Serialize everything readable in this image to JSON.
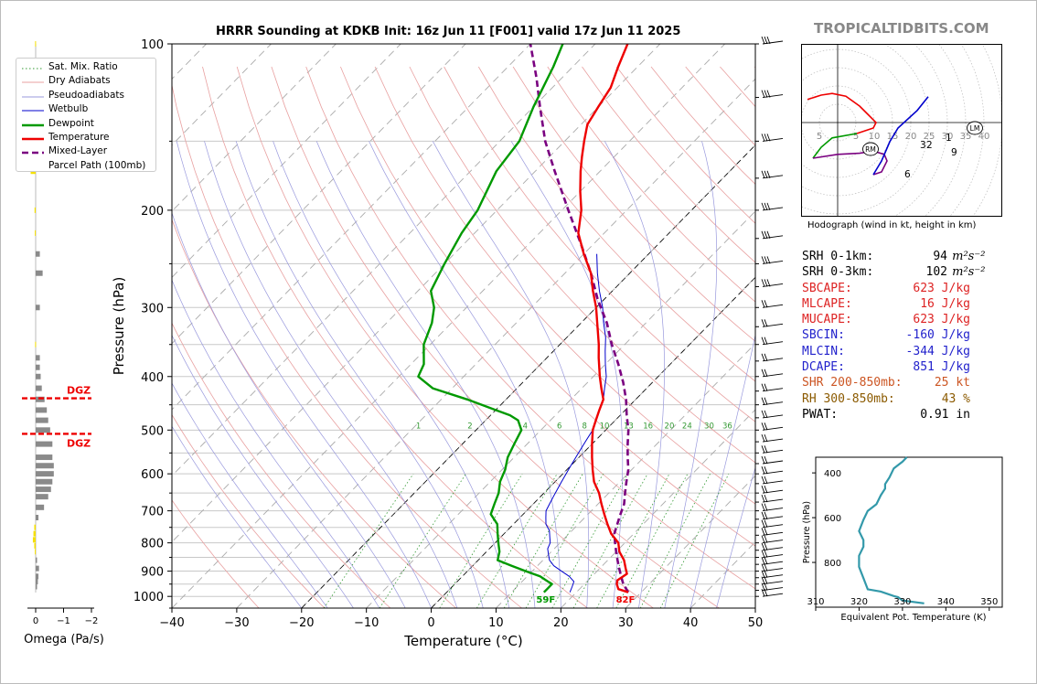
{
  "watermark": "TROPICALTIDBITS.COM",
  "title": "HRRR Sounding at KDKB Init: 16z Jun 11 [F001] valid 17z Jun 11 2025",
  "chart_data": [
    {
      "type": "line",
      "name": "skew-t",
      "xlabel": "Temperature (°C)",
      "ylabel": "Pressure (hPa)",
      "xlim": [
        -40,
        50
      ],
      "ylim": [
        1050,
        100
      ],
      "y_scale": "log",
      "x_ticks": [
        "−40",
        "−30",
        "−20",
        "−10",
        "0",
        "10",
        "20",
        "30",
        "40",
        "50"
      ],
      "y_ticks": [
        "100",
        "200",
        "300",
        "400",
        "500",
        "600",
        "700",
        "800",
        "900",
        "1000"
      ],
      "legend_position": "top-left",
      "legend": [
        "Sat. Mix. Ratio",
        "Dry Adiabats",
        "Pseudoadiabats",
        "Wetbulb",
        "Dewpoint",
        "Temperature",
        "Mixed-Layer",
        "Parcel Path (100mb)"
      ],
      "mixing_ratio_labels": [
        "1",
        "2",
        "4",
        "6",
        "8",
        "10",
        "13",
        "16",
        "20",
        "24",
        "30",
        "36"
      ],
      "surface_labels": {
        "dewpoint": "59F",
        "temperature": "82F"
      },
      "colors": {
        "temperature": "#ee0000",
        "dewpoint": "#009900",
        "wetbulb": "#0000cc",
        "parcel": "#7a0080"
      },
      "temperature": {
        "p": [
          983,
          970,
          950,
          935,
          910,
          890,
          860,
          830,
          800,
          770,
          740,
          710,
          680,
          650,
          620,
          590,
          560,
          530,
          500,
          480,
          460,
          440,
          420,
          400,
          370,
          350,
          320,
          300,
          280,
          260,
          240,
          220,
          200,
          185,
          170,
          160,
          150,
          140,
          130,
          120,
          110,
          100
        ],
        "t": [
          28,
          26,
          25,
          24.5,
          25,
          24,
          22.5,
          20.5,
          19,
          16.5,
          14.5,
          12.5,
          10.5,
          8.5,
          6,
          4,
          2,
          0,
          -2,
          -3,
          -4,
          -5,
          -7,
          -9,
          -12,
          -14,
          -17.5,
          -20,
          -23,
          -26,
          -30,
          -34,
          -37,
          -40,
          -43,
          -45,
          -47,
          -49,
          -50,
          -51,
          -53,
          -55
        ]
      },
      "dewpoint": {
        "p": [
          983,
          970,
          950,
          940,
          920,
          900,
          880,
          860,
          830,
          800,
          770,
          740,
          710,
          680,
          650,
          620,
          590,
          560,
          530,
          500,
          480,
          470,
          460,
          440,
          420,
          400,
          380,
          350,
          320,
          300,
          280,
          250,
          220,
          200,
          170,
          150,
          130,
          110,
          100
        ],
        "t": [
          15,
          15,
          15,
          14,
          12,
          9,
          6,
          3,
          2,
          0.5,
          -1,
          -2.5,
          -5,
          -6,
          -7,
          -8.5,
          -9.5,
          -11,
          -12,
          -13,
          -15,
          -17,
          -20,
          -26,
          -33,
          -37,
          -38,
          -41,
          -43,
          -45,
          -48,
          -50,
          -52,
          -53,
          -56,
          -57,
          -60,
          -63,
          -65
        ]
      },
      "wetbulb": {
        "p": [
          983,
          960,
          940,
          920,
          900,
          880,
          860,
          840,
          820,
          800,
          780,
          760,
          740,
          720,
          700,
          680,
          660,
          640,
          620,
          600,
          580,
          560,
          540,
          520,
          500,
          480,
          460,
          440,
          420,
          400,
          380,
          360,
          340,
          320,
          300,
          280,
          260,
          240
        ],
        "t": [
          19,
          18.5,
          18,
          16.5,
          14.5,
          12.5,
          11,
          10,
          9,
          8.5,
          7.5,
          6.5,
          5,
          4,
          3,
          2.5,
          2,
          1.5,
          1,
          0.5,
          0,
          -0.5,
          -1,
          -1.5,
          -2,
          -3,
          -4,
          -5,
          -6.5,
          -8,
          -10,
          -12,
          -14,
          -16.5,
          -19,
          -22,
          -25,
          -28
        ]
      },
      "parcel": {
        "p": [
          983,
          950,
          920,
          890,
          860,
          830,
          800,
          770,
          740,
          710,
          680,
          650,
          620,
          590,
          560,
          530,
          500,
          470,
          440,
          410,
          380,
          350,
          320,
          290,
          260,
          230,
          200,
          170,
          150,
          130,
          115,
          100
        ],
        "t": [
          28,
          26,
          24.5,
          23,
          21.5,
          20,
          18.5,
          17,
          16,
          15,
          14,
          12.5,
          11,
          9.5,
          7.5,
          5.5,
          3.5,
          1,
          -1.5,
          -4.5,
          -8,
          -12,
          -16,
          -21,
          -26,
          -32,
          -39,
          -47,
          -53,
          -59,
          -64,
          -70
        ]
      }
    },
    {
      "type": "line",
      "name": "hodograph",
      "title": "Hodograph (wind in kt, height in km)",
      "ring_labels": [
        "5",
        "5",
        "10",
        "15",
        "20",
        "25",
        "30",
        "35",
        "40"
      ],
      "height_labels": [
        "1",
        "2",
        "3",
        "6",
        "9"
      ],
      "markers": [
        "RM",
        "LM"
      ],
      "segments": [
        {
          "color": "#ee0000",
          "u": [
            -5.5,
            -3,
            -1,
            1.5,
            4,
            5.5,
            7,
            6.5,
            3.5
          ],
          "v": [
            4.2,
            5,
            5.3,
            4.8,
            3,
            1.5,
            0,
            -1,
            -2
          ]
        },
        {
          "color": "#009900",
          "u": [
            3.5,
            -1,
            -3,
            -4.5
          ],
          "v": [
            -2,
            -2.8,
            -4.5,
            -6.5
          ]
        },
        {
          "color": "#7a0080",
          "u": [
            -4.5,
            0,
            4,
            6.5,
            8.5,
            9,
            8,
            6.5
          ],
          "v": [
            -6.5,
            -5.8,
            -5.6,
            -5.2,
            -5.8,
            -7,
            -9,
            -9.5
          ]
        },
        {
          "color": "#0000cc",
          "u": [
            6.5,
            8,
            9.5,
            11,
            14.5,
            16.5
          ],
          "v": [
            -9.5,
            -7,
            -3.5,
            -1,
            2.2,
            4.7
          ]
        }
      ]
    },
    {
      "type": "line",
      "name": "theta-e",
      "xlabel": "Equivalent Pot. Temperature (K)",
      "ylabel": "Pressure (hPa)",
      "xlim": [
        310,
        353
      ],
      "ylim": [
        1000,
        330
      ],
      "x_ticks": [
        "310",
        "320",
        "330",
        "340",
        "350"
      ],
      "y_ticks": [
        "400",
        "600",
        "800"
      ],
      "color": "#3399aa",
      "theta_e": [
        335,
        330,
        329,
        328,
        325,
        322,
        321,
        320,
        320,
        321,
        321,
        320,
        321,
        322,
        324,
        325,
        326,
        326,
        327,
        328,
        330,
        331
      ],
      "p": [
        983,
        970,
        955,
        950,
        930,
        920,
        870,
        820,
        770,
        730,
        700,
        660,
        610,
        570,
        540,
        500,
        470,
        450,
        420,
        380,
        350,
        330
      ]
    },
    {
      "type": "bar",
      "name": "omega",
      "xlabel": "Omega (Pa/s)",
      "x_ticks": [
        "0",
        "−1",
        "−2"
      ],
      "xlim": [
        0.4,
        -2.4
      ],
      "dgz_label": "DGZ",
      "dgz_bounds_hpa": [
        438,
        508
      ],
      "p": [
        100,
        130,
        150,
        170,
        200,
        220,
        240,
        260,
        300,
        350,
        370,
        385,
        400,
        420,
        440,
        460,
        480,
        500,
        530,
        560,
        580,
        600,
        620,
        640,
        660,
        690,
        720,
        750,
        770,
        790,
        810,
        830,
        860,
        890,
        920,
        940,
        960
      ],
      "omega": [
        0.02,
        0.05,
        0.12,
        0.18,
        0.04,
        0.03,
        -0.15,
        -0.25,
        -0.15,
        0.02,
        -0.15,
        -0.15,
        -0.18,
        -0.22,
        -0.32,
        -0.4,
        -0.45,
        -0.52,
        -0.6,
        -0.6,
        -0.65,
        -0.65,
        -0.6,
        -0.55,
        -0.45,
        -0.3,
        -0.1,
        0.05,
        0.08,
        0.1,
        0.05,
        0.03,
        -0.05,
        -0.12,
        -0.1,
        -0.08,
        -0.05
      ]
    }
  ],
  "stats": [
    {
      "label": "SRH 0-1km:",
      "value": "94",
      "unit": " m²s⁻²",
      "color": "#000000"
    },
    {
      "label": "SRH 0-3km:",
      "value": "102",
      "unit": " m²s⁻²",
      "color": "#000000"
    },
    {
      "label": "SBCAPE:",
      "value": "623 J/kg",
      "unit": "",
      "color": "#dd2222"
    },
    {
      "label": "MLCAPE:",
      "value": "16 J/kg",
      "unit": "",
      "color": "#dd2222"
    },
    {
      "label": "MUCAPE:",
      "value": "623 J/kg",
      "unit": "",
      "color": "#dd2222"
    },
    {
      "label": "SBCIN:",
      "value": "-160 J/kg",
      "unit": "",
      "color": "#2222cc"
    },
    {
      "label": "MLCIN:",
      "value": "-344 J/kg",
      "unit": "",
      "color": "#2222cc"
    },
    {
      "label": "DCAPE:",
      "value": "851 J/kg",
      "unit": "",
      "color": "#2222cc"
    },
    {
      "label": "SHR 200-850mb:",
      "value": "25 kt",
      "unit": "",
      "color": "#cc5522"
    },
    {
      "label": "RH 300-850mb:",
      "value": "43 %",
      "unit": "",
      "color": "#8b5a00"
    },
    {
      "label": "PWAT:",
      "value": "0.91 in",
      "unit": "",
      "color": "#000000"
    }
  ]
}
